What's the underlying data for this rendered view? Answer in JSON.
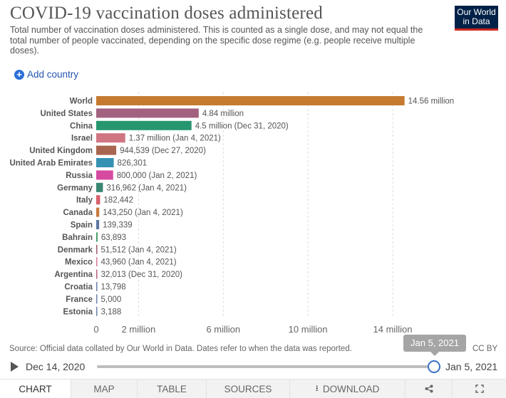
{
  "header": {
    "title": "COVID-19 vaccination doses administered",
    "subtitle": "Total number of vaccination doses administered. This is counted as a single dose, and may not equal the total number of people vaccinated, depending on the specific dose regime (e.g. people receive multiple doses).",
    "logo_line1": "Our World",
    "logo_line2": "in Data"
  },
  "controls": {
    "add_country": "Add country"
  },
  "chart_data": {
    "type": "bar",
    "orientation": "horizontal",
    "categories": [
      "World",
      "United States",
      "China",
      "Israel",
      "United Kingdom",
      "United Arab Emirates",
      "Russia",
      "Germany",
      "Italy",
      "Canada",
      "Spain",
      "Bahrain",
      "Denmark",
      "Mexico",
      "Argentina",
      "Croatia",
      "France",
      "Estonia"
    ],
    "values": [
      14560000,
      4840000,
      4500000,
      1370000,
      944539,
      826301,
      800000,
      316962,
      182442,
      143250,
      139339,
      63893,
      51512,
      43960,
      32013,
      13798,
      5000,
      3188
    ],
    "labels": [
      "14.56 million",
      "4.84 million",
      "4.5 million (Dec 31, 2020)",
      "1.37 million (Jan 4, 2021)",
      "944,539 (Dec 27, 2020)",
      "826,301",
      "800,000 (Jan 2, 2021)",
      "316,962 (Jan 4, 2021)",
      "182,442",
      "143,250 (Jan 4, 2021)",
      "139,339",
      "63,893",
      "51,512 (Jan 4, 2021)",
      "43,960 (Jan 4, 2021)",
      "32,013 (Dec 31, 2020)",
      "13,798",
      "5,000",
      "3,188"
    ],
    "colors": [
      "#c57a2f",
      "#a2617f",
      "#26966f",
      "#d07582",
      "#a9654f",
      "#3591b3",
      "#d64ba0",
      "#3a8570",
      "#d8616b",
      "#c97a3e",
      "#5f76a2",
      "#3f9a62",
      "#9e5a6f",
      "#d7779c",
      "#b5627a",
      "#6a7fa6",
      "#6a7fa6",
      "#6a7fa6"
    ],
    "xticks": [
      0,
      2000000,
      6000000,
      10000000,
      14000000
    ],
    "xtick_labels": [
      "0",
      "2 million",
      "6 million",
      "10 million",
      "14 million"
    ],
    "xlim": [
      0,
      15000000
    ],
    "grid": true
  },
  "timeline": {
    "start": "Dec 14, 2020",
    "end": "Jan 5, 2021",
    "tooltip": "Jan 5, 2021"
  },
  "footer": {
    "source": "Source: Official data collated by Our World in Data. Dates refer to when the data was reported.",
    "license": "CC BY"
  },
  "tabs": {
    "chart": "CHART",
    "map": "MAP",
    "table": "TABLE",
    "sources": "SOURCES",
    "download": "DOWNLOAD"
  },
  "icons": {
    "add": "plus-circle-icon",
    "play": "play-icon",
    "download": "download-icon",
    "share": "share-icon",
    "fullscreen": "fullscreen-icon"
  }
}
